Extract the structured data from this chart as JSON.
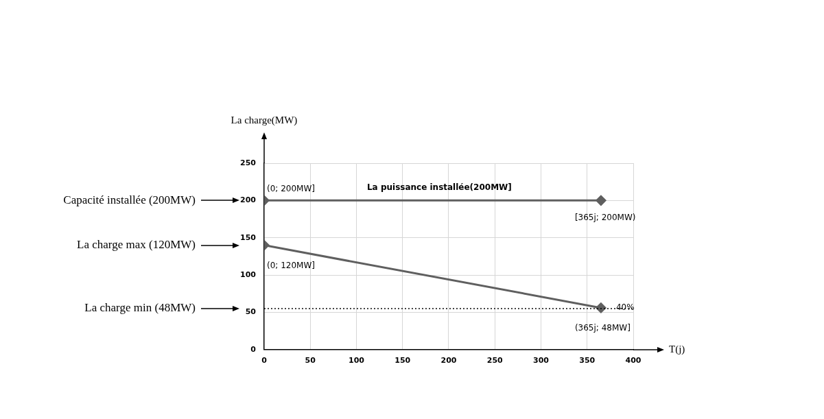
{
  "chart_data": {
    "type": "line",
    "xlabel": "T(j)",
    "ylabel": "La charge(MW)",
    "xlim": [
      0,
      400
    ],
    "xticks": [
      0,
      50,
      100,
      150,
      200,
      250,
      300,
      350,
      400
    ],
    "ylim": [
      0,
      250
    ],
    "yticks": [
      0,
      50,
      100,
      150,
      200,
      250
    ],
    "grid": true,
    "marker": "diamond",
    "x": [
      0,
      365
    ],
    "series": [
      {
        "color": "#5f5f5f",
        "values": [
          200,
          200
        ]
      },
      {
        "color": "#5f5f5f",
        "values": [
          140,
          56
        ]
      }
    ],
    "ref_lines": [
      {
        "axis": "y",
        "value": 55,
        "color": "#000000",
        "line_style": "dotted"
      }
    ],
    "annotations": [
      "(0; 200MW]",
      "La puissance installée(200MW]",
      "[365j; 200MW)",
      "(0; 120MW]",
      "40%",
      "(365j; 48MW]",
      "Capacité installée (200MW)",
      "La charge max (120MW)",
      "La charge min (48MW)"
    ]
  }
}
